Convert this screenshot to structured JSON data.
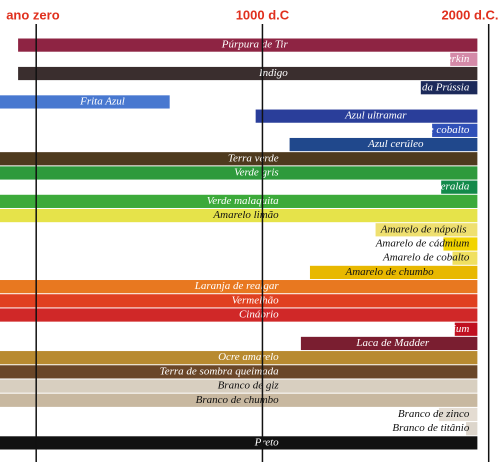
{
  "chart_data": {
    "type": "timeline",
    "xlim": [
      -160,
      2050
    ],
    "xticks": [
      {
        "value": 0,
        "label": "ano zero"
      },
      {
        "value": 1000,
        "label": "1000 d.C"
      },
      {
        "value": 2000,
        "label": "2000 d.C."
      }
    ],
    "tick_color": "#e0301e",
    "grid": true,
    "categories": [
      "Púrpura de Tir",
      "Mauve Perkin",
      "Indigo",
      "Azul da Prússia",
      "Frita Azul",
      "Azul ultramar",
      "Azul de cobalto",
      "Azul cerúleo",
      "Terra verde",
      "Verde gris",
      "Verde esmeralda",
      "Verde malaquita",
      "Amarelo limão",
      "Amarelo de nápolis",
      "Amarelo de cádmium",
      "Amarelo de cobalto",
      "Amarelo de chumbo",
      "Laranja de realgar",
      "Vermelhão",
      "Cinábrio",
      "Vermelho de cádmium",
      "Laca de Madder",
      "Ocre amarelo",
      "Terra de sombra queimada",
      "Branco de giz",
      "Branco de chumbo",
      "Branco de zinco",
      "Branco de titânio",
      "Preto"
    ],
    "start": [
      -80,
      1830,
      -80,
      1700,
      -160,
      970,
      1750,
      1120,
      -160,
      -160,
      1790,
      -160,
      -160,
      1500,
      1800,
      1840,
      1210,
      -160,
      -160,
      -160,
      1850,
      1170,
      -160,
      -160,
      -160,
      -160,
      1780,
      1900,
      -160
    ],
    "end": [
      1950,
      1950,
      1950,
      1950,
      590,
      1950,
      1950,
      1950,
      1950,
      1950,
      1950,
      1950,
      1950,
      1950,
      1950,
      1950,
      1950,
      1950,
      1950,
      1950,
      1950,
      1950,
      1950,
      1950,
      1950,
      1950,
      1950,
      1950,
      1950
    ],
    "colors": [
      "#8e2443",
      "#d48aa8",
      "#3a2e2e",
      "#1c2a5a",
      "#4878d0",
      "#2a3e9a",
      "#3050b8",
      "#20488c",
      "#4e3a1e",
      "#2e9a3c",
      "#138a4a",
      "#3caa3a",
      "#e6e34a",
      "#efe070",
      "#f2d400",
      "#f0e060",
      "#e8b800",
      "#e87820",
      "#e04020",
      "#d02828",
      "#c01020",
      "#7a1e30",
      "#b88a30",
      "#6a4628",
      "#d8cfc0",
      "#c8b8a0",
      "#e4dcd2",
      "#ddd6cc",
      "#111111"
    ]
  }
}
